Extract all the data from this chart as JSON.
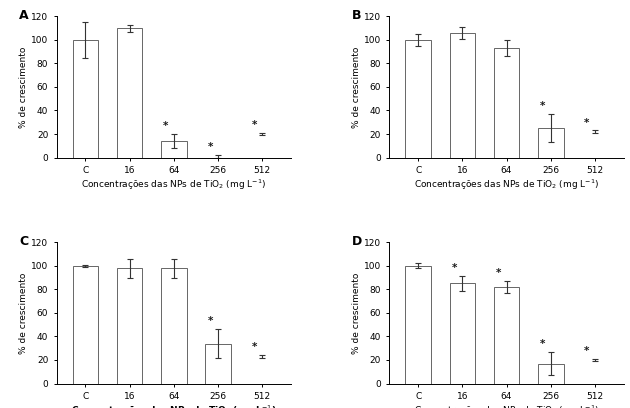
{
  "panels": [
    {
      "label": "A",
      "values": [
        100,
        110,
        14,
        1,
        20
      ],
      "errors": [
        15,
        3,
        6,
        1,
        1
      ],
      "sig": [
        false,
        false,
        true,
        true,
        true
      ],
      "has_bar": [
        true,
        true,
        true,
        false,
        false
      ]
    },
    {
      "label": "B",
      "values": [
        100,
        106,
        93,
        25,
        22
      ],
      "errors": [
        5,
        5,
        7,
        12,
        1
      ],
      "sig": [
        false,
        false,
        false,
        true,
        true
      ],
      "has_bar": [
        true,
        true,
        true,
        true,
        false
      ]
    },
    {
      "label": "C",
      "values": [
        100,
        98,
        98,
        34,
        23
      ],
      "errors": [
        1,
        8,
        8,
        12,
        1
      ],
      "sig": [
        false,
        false,
        false,
        true,
        true
      ],
      "has_bar": [
        true,
        true,
        true,
        true,
        false
      ]
    },
    {
      "label": "D",
      "values": [
        100,
        85,
        82,
        17,
        20
      ],
      "errors": [
        2,
        6,
        5,
        10,
        1
      ],
      "sig": [
        false,
        true,
        true,
        true,
        true
      ],
      "has_bar": [
        true,
        true,
        true,
        true,
        false
      ]
    }
  ],
  "categories": [
    "C",
    "16",
    "64",
    "256",
    "512"
  ],
  "ylabel": "% de crescimento",
  "xlabel_text": "Concentrações das NPs de TiO$_2$ (mg L$^{-1}$)",
  "xlabel_bold": [
    false,
    false,
    true,
    false
  ],
  "ylim": [
    0,
    120
  ],
  "yticks": [
    0,
    20,
    40,
    60,
    80,
    100,
    120
  ],
  "bar_color": "white",
  "bar_edgecolor": "#666666",
  "sig_marker": "*"
}
